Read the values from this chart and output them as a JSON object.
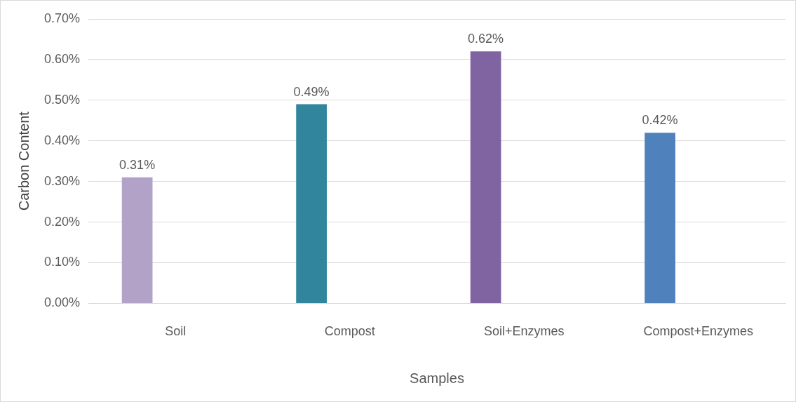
{
  "chart_data": {
    "type": "bar",
    "xlabel": "Samples",
    "ylabel": "Carbon Content",
    "categories": [
      "Soil",
      "Compost",
      "Soil+Enzymes",
      "Compost+Enzymes"
    ],
    "values": [
      0.31,
      0.49,
      0.62,
      0.42
    ],
    "colors": [
      "#b3a2c7",
      "#31859c",
      "#8064a2",
      "#4f81bd"
    ],
    "value_labels": [
      "0.31%",
      "0.49%",
      "0.62%",
      "0.42%"
    ],
    "ylim": [
      0,
      0.7
    ],
    "yticks": [
      {
        "value": 0,
        "label": "0.00%"
      },
      {
        "value": 0.1,
        "label": "0.10%"
      },
      {
        "value": 0.2,
        "label": "0.20%"
      },
      {
        "value": 0.3,
        "label": "0.30%"
      },
      {
        "value": 0.4,
        "label": "0.40%"
      },
      {
        "value": 0.5,
        "label": "0.50%"
      },
      {
        "value": 0.6,
        "label": "0.60%"
      },
      {
        "value": 0.7,
        "label": "0.70%"
      }
    ],
    "grid": "y",
    "legend": false
  }
}
